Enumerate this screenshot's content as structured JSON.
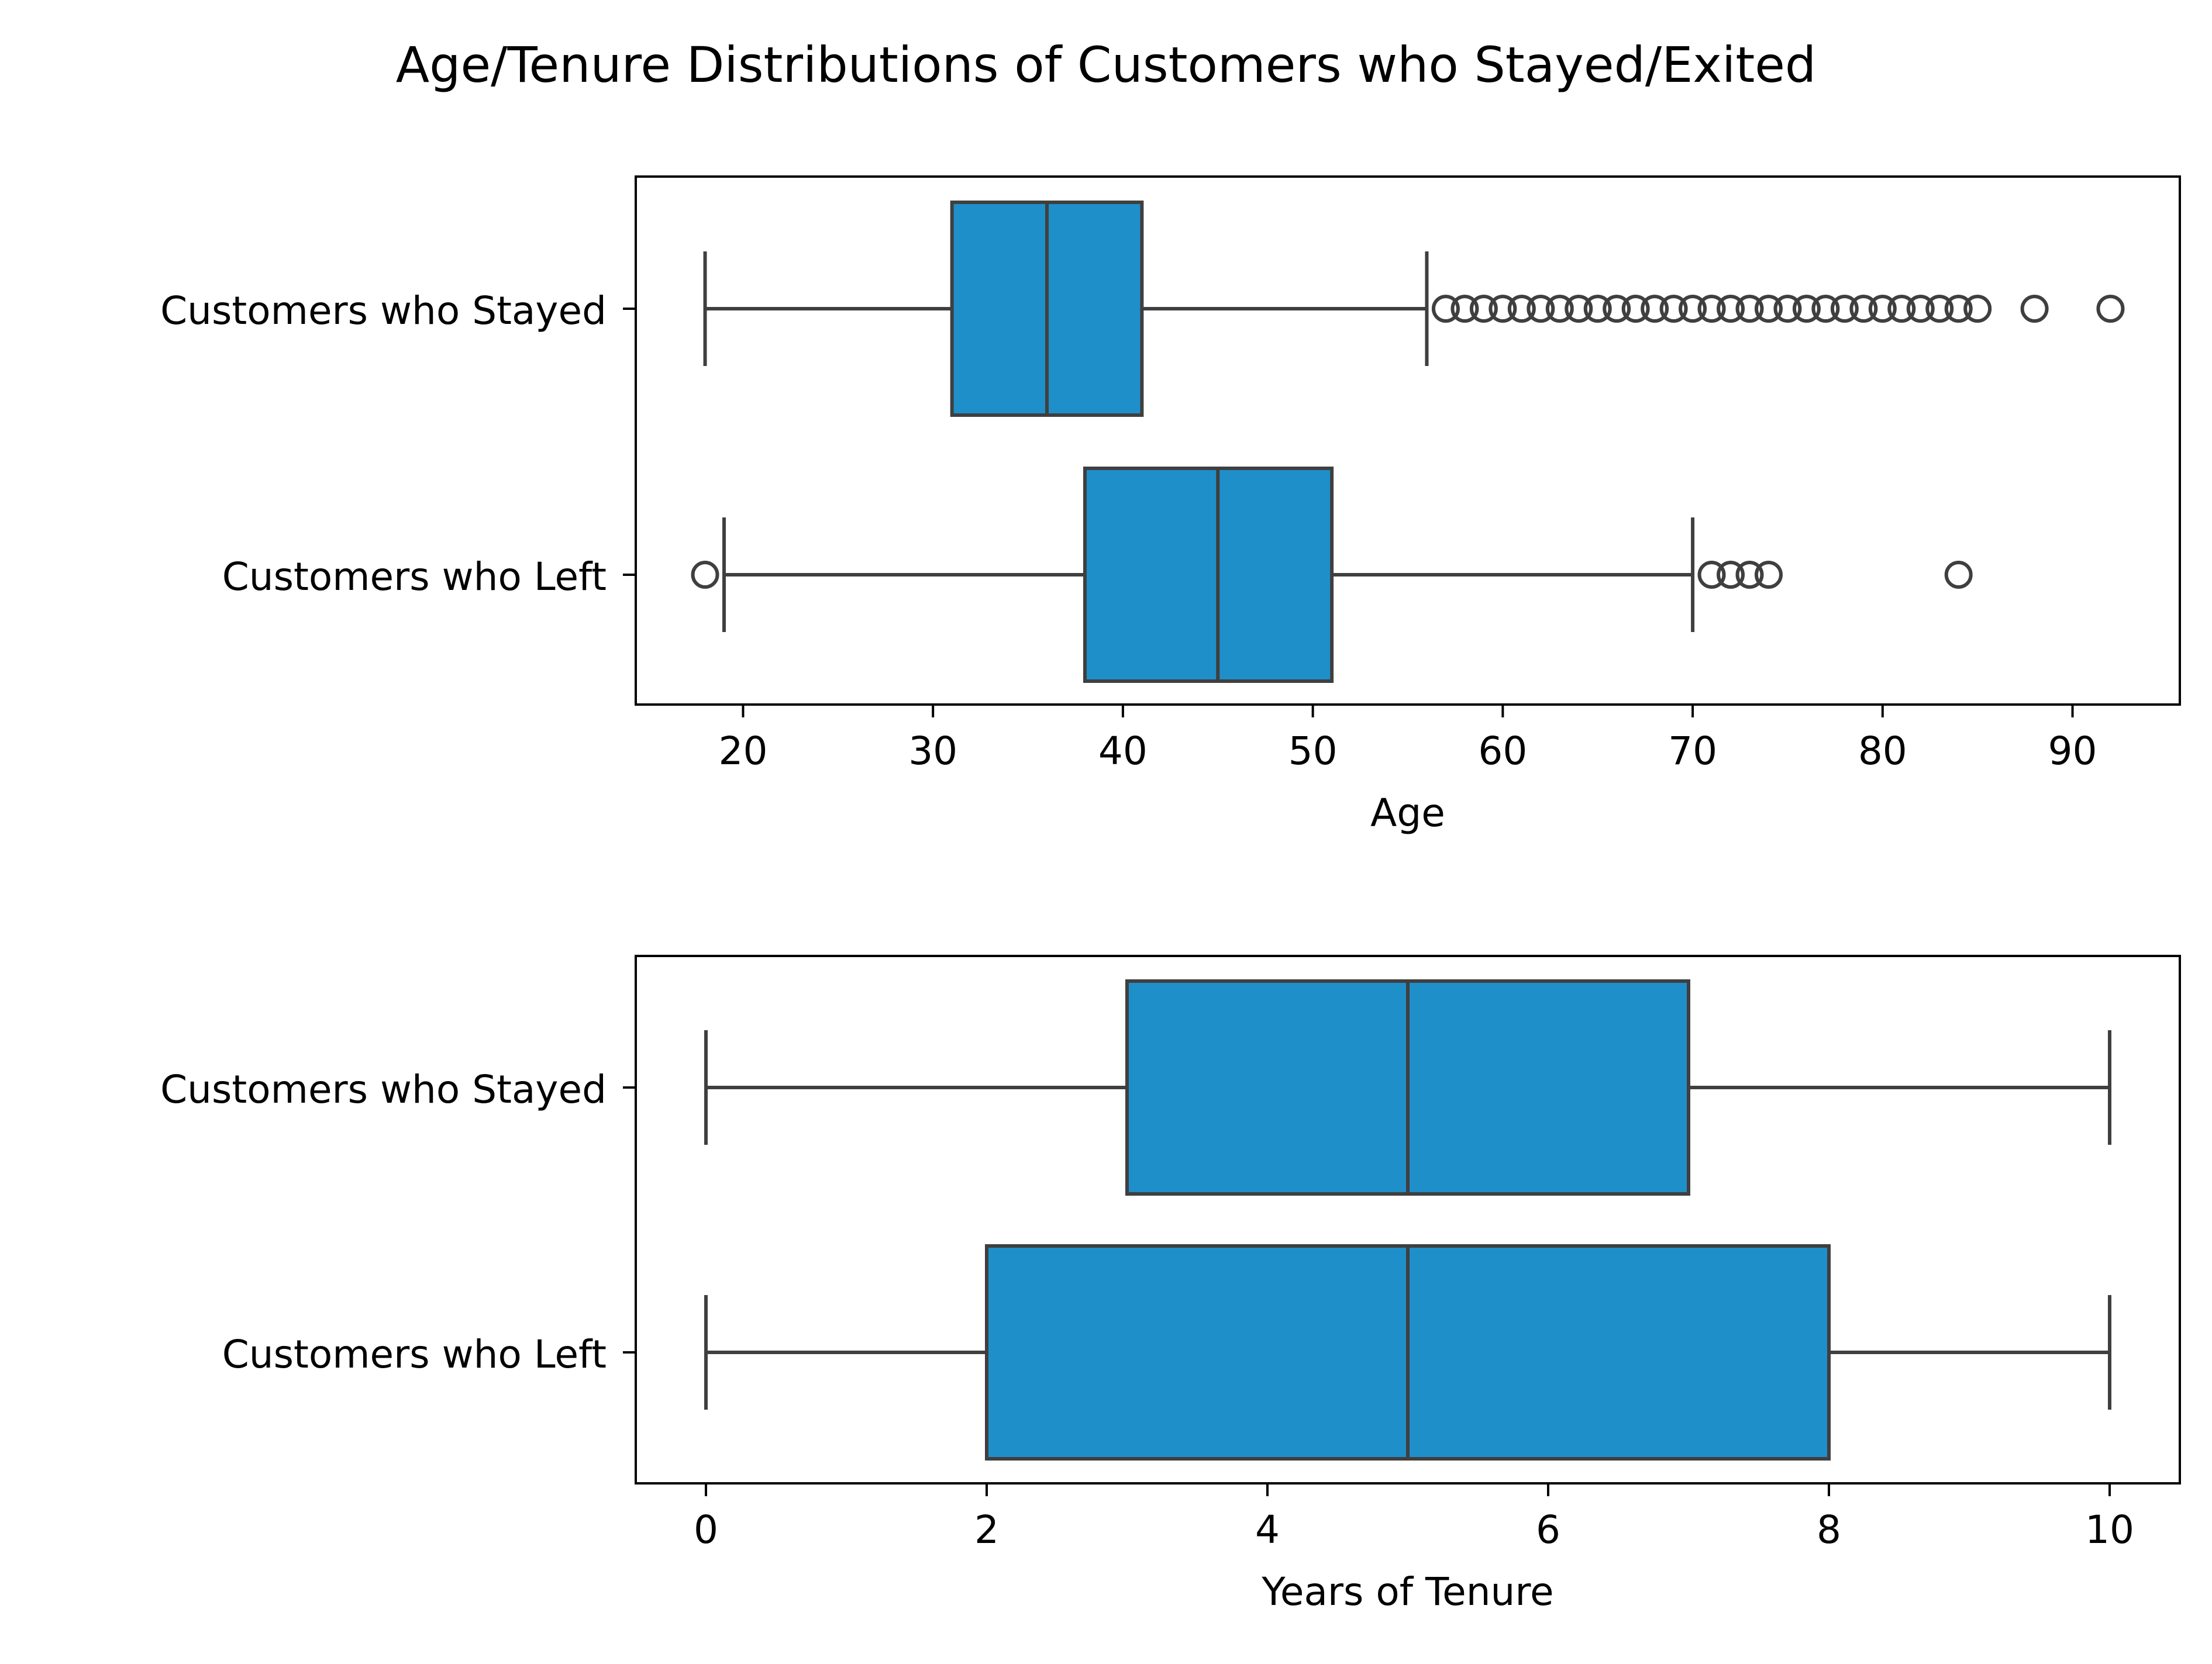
{
  "title": "Age/Tenure Distributions of Customers who Stayed/Exited",
  "colors": {
    "box_fill": "#1f8fca",
    "box_edge": "#3f3f3f",
    "axis": "#000000"
  },
  "chart_data": [
    {
      "type": "box",
      "xlabel": "Age",
      "ylabel": "",
      "xlim": [
        14.35,
        95.65
      ],
      "xticks": [
        "20",
        "30",
        "40",
        "50",
        "60",
        "70",
        "80",
        "90"
      ],
      "xtick_values": [
        20,
        30,
        40,
        50,
        60,
        70,
        80,
        90
      ],
      "categories": [
        "Customers who Stayed",
        "Customers who Left"
      ],
      "boxes": [
        {
          "name": "Customers who Stayed",
          "whisker_low": 18,
          "q1": 31,
          "median": 36,
          "q3": 41,
          "whisker_high": 56,
          "outliers": [
            57,
            58,
            59,
            60,
            61,
            62,
            63,
            64,
            65,
            66,
            67,
            68,
            69,
            70,
            71,
            72,
            73,
            74,
            75,
            76,
            77,
            78,
            79,
            80,
            81,
            82,
            83,
            84,
            85,
            88,
            92
          ]
        },
        {
          "name": "Customers who Left",
          "whisker_low": 19,
          "q1": 38,
          "median": 45,
          "q3": 51,
          "whisker_high": 70,
          "outliers": [
            18,
            71,
            72,
            73,
            74,
            84
          ]
        }
      ]
    },
    {
      "type": "box",
      "xlabel": "Years of Tenure",
      "ylabel": "",
      "xlim": [
        -0.5,
        10.5
      ],
      "xticks": [
        "0",
        "2",
        "4",
        "6",
        "8",
        "10"
      ],
      "xtick_values": [
        0,
        2,
        4,
        6,
        8,
        10
      ],
      "categories": [
        "Customers who Stayed",
        "Customers who Left"
      ],
      "boxes": [
        {
          "name": "Customers who Stayed",
          "whisker_low": 0,
          "q1": 3,
          "median": 5,
          "q3": 7,
          "whisker_high": 10,
          "outliers": []
        },
        {
          "name": "Customers who Left",
          "whisker_low": 0,
          "q1": 2,
          "median": 5,
          "q3": 8,
          "whisker_high": 10,
          "outliers": []
        }
      ]
    }
  ]
}
